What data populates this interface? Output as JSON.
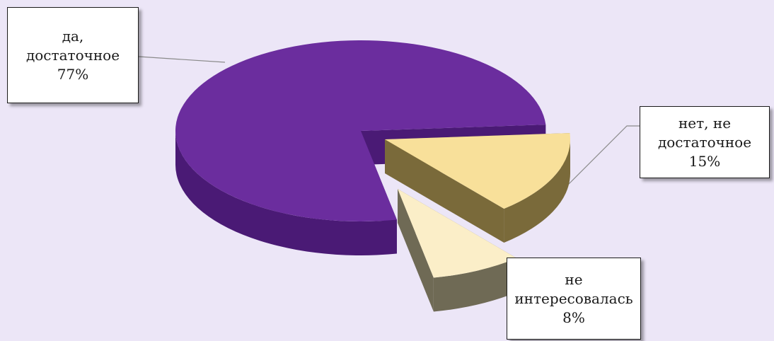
{
  "chart_data": {
    "type": "pie",
    "style": "3d-exploded",
    "slices": [
      {
        "label_line1": "да,",
        "label_line2": "достаточное",
        "percent_text": "77%",
        "value": 77,
        "top_color": "#6b2d9e",
        "side_color": "#4a1a75"
      },
      {
        "label_line1": "нет, не",
        "label_line2": "достаточное",
        "percent_text": "15%",
        "value": 15,
        "top_color": "#f8e09a",
        "side_color": "#7a6a3a"
      },
      {
        "label_line1": "не",
        "label_line2": "интересовалась",
        "percent_text": "8%",
        "value": 8,
        "top_color": "#fbeec8",
        "side_color": "#6f6a55"
      }
    ],
    "background_color": "#ece6f7"
  }
}
